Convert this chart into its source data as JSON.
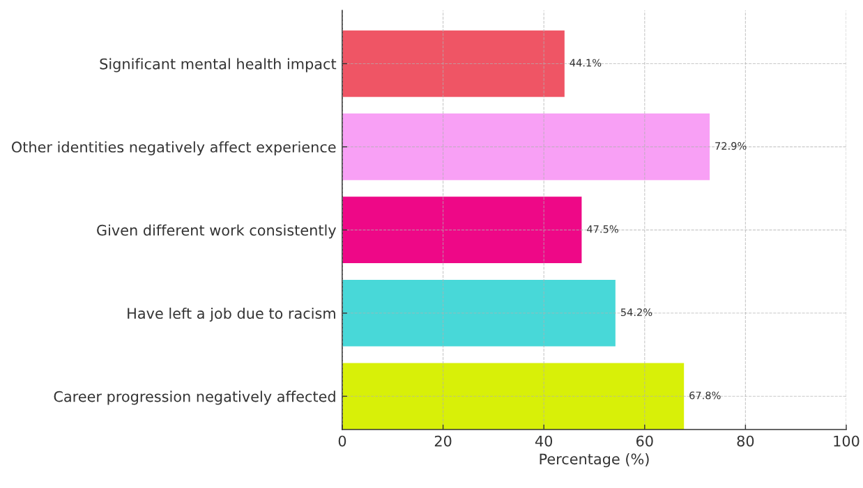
{
  "chart_data": {
    "type": "bar",
    "orientation": "horizontal",
    "categories": [
      "Significant mental health impact",
      "Other identities negatively affect experience",
      "Given different work consistently",
      "Have left a job due to racism",
      "Career progression negatively affected"
    ],
    "values": [
      44.1,
      72.9,
      47.5,
      54.2,
      67.8
    ],
    "colors": [
      "#ef5565",
      "#f8a0f5",
      "#ee0887",
      "#48d8d8",
      "#d8f008"
    ],
    "value_labels": [
      "44.1%",
      "72.9%",
      "47.5%",
      "54.2%",
      "67.8%"
    ],
    "xlabel": "Percentage (%)",
    "xlim": [
      0,
      100
    ],
    "xticks": [
      0,
      20,
      40,
      60,
      80,
      100
    ],
    "grid": true
  }
}
